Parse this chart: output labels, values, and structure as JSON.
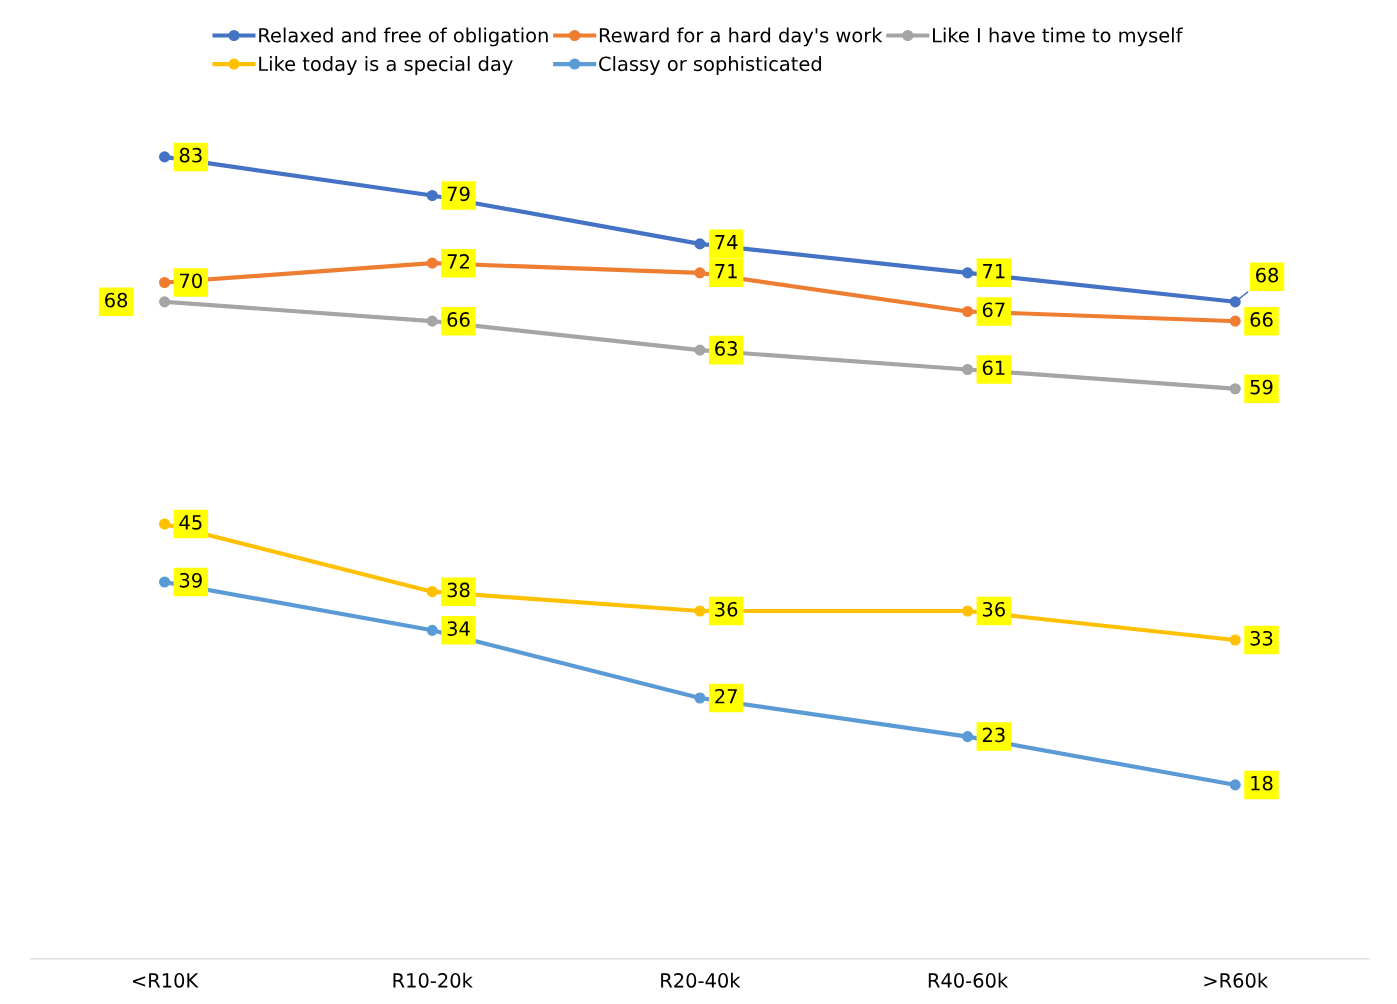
{
  "chart_data": {
    "type": "line",
    "categories": [
      "<R10K",
      "R10-20k",
      "R20-40k",
      "R40-60k",
      ">R60k"
    ],
    "series": [
      {
        "name": "Relaxed and free of obligation",
        "color": "#4472c4",
        "values": [
          83,
          79,
          74,
          71,
          68
        ]
      },
      {
        "name": "Reward for a hard day's work",
        "color": "#ed7d31",
        "values": [
          70,
          72,
          71,
          67,
          66
        ]
      },
      {
        "name": "Like I have time to myself",
        "color": "#a5a5a5",
        "values": [
          68,
          66,
          63,
          61,
          59
        ]
      },
      {
        "name": "Like today is a special day",
        "color": "#ffc000",
        "values": [
          45,
          38,
          36,
          36,
          33
        ]
      },
      {
        "name": "Classy or sophisticated",
        "color": "#5b9bd5",
        "values": [
          39,
          34,
          27,
          23,
          18
        ]
      }
    ],
    "data_labels": true,
    "marker": "circle",
    "line_style": "solid",
    "grid": false,
    "legend": "top"
  }
}
